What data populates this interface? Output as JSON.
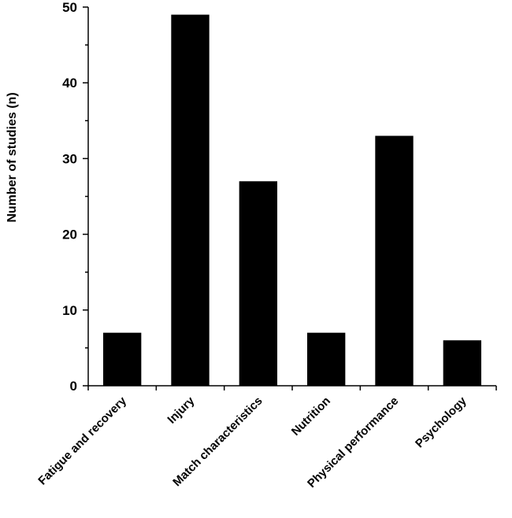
{
  "chart_data": {
    "type": "bar",
    "categories": [
      "Fatigue and recovery",
      "Injury",
      "Match characteristics",
      "Nutrition",
      "Physical performance",
      "Psychology"
    ],
    "values": [
      7,
      49,
      27,
      7,
      33,
      6
    ],
    "ylabel": "Number of studies (n)",
    "xlabel": "",
    "ylim": [
      0,
      50
    ],
    "yticks": [
      0,
      10,
      20,
      30,
      40,
      50
    ],
    "grid": false,
    "bar_color": "#000000"
  }
}
